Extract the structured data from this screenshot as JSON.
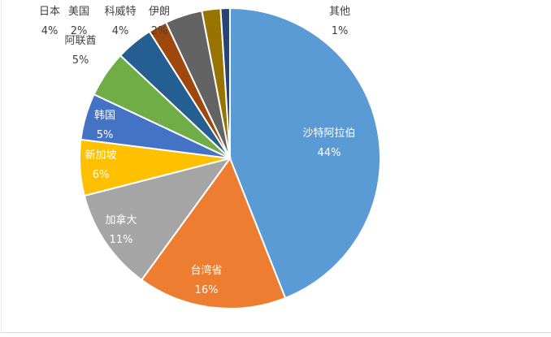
{
  "chart_data": {
    "type": "pie",
    "title": "",
    "start_angle_deg": 0,
    "direction": "clockwise",
    "slices": [
      {
        "label": "沙特阿拉伯",
        "value": 44,
        "value_label": "44%",
        "color": "#5b9bd5",
        "label_color": "#ffffff",
        "label_inside": true
      },
      {
        "label": "台湾省",
        "value": 16,
        "value_label": "16%",
        "color": "#ed7d31",
        "label_color": "#ffffff",
        "label_inside": true
      },
      {
        "label": "加拿大",
        "value": 11,
        "value_label": "11%",
        "color": "#a5a5a5",
        "label_color": "#ffffff",
        "label_inside": true
      },
      {
        "label": "新加坡",
        "value": 6,
        "value_label": "6%",
        "color": "#ffc000",
        "label_color": "#ffffff",
        "label_inside": true
      },
      {
        "label": "韩国",
        "value": 5,
        "value_label": "5%",
        "color": "#4472c4",
        "label_color": "#ffffff",
        "label_inside": true
      },
      {
        "label": "阿联酋",
        "value": 5,
        "value_label": "5%",
        "color": "#70ad47",
        "label_color": "#404040",
        "label_inside": false
      },
      {
        "label": "日本",
        "value": 4,
        "value_label": "4%",
        "color": "#255e91",
        "label_color": "#404040",
        "label_inside": false
      },
      {
        "label": "美国",
        "value": 2,
        "value_label": "2%",
        "color": "#9e480e",
        "label_color": "#404040",
        "label_inside": false
      },
      {
        "label": "科威特",
        "value": 4,
        "value_label": "4%",
        "color": "#636363",
        "label_color": "#404040",
        "label_inside": false
      },
      {
        "label": "伊朗",
        "value": 2,
        "value_label": "2%",
        "color": "#997300",
        "label_color": "#404040",
        "label_inside": false
      },
      {
        "label": "其他",
        "value": 1,
        "value_label": "1%",
        "color": "#264478",
        "label_color": "#404040",
        "label_inside": false
      }
    ]
  }
}
